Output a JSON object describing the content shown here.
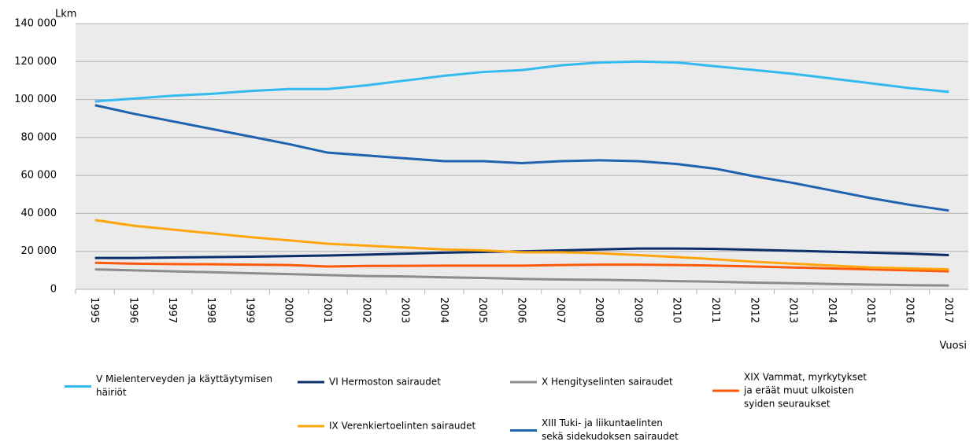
{
  "chart_data": {
    "type": "line",
    "y_label": "Lkm",
    "x_label": "Vuosi",
    "categories": [
      "1995",
      "1996",
      "1997",
      "1998",
      "1999",
      "2000",
      "2001",
      "2002",
      "2003",
      "2004",
      "2005",
      "2006",
      "2007",
      "2008",
      "2009",
      "2010",
      "2011",
      "2012",
      "2013",
      "2014",
      "2015",
      "2016",
      "2017"
    ],
    "ylim": [
      0,
      140000
    ],
    "yticks": [
      {
        "value": 0,
        "label": "0"
      },
      {
        "value": 20000,
        "label": "20 000"
      },
      {
        "value": 40000,
        "label": "40 000"
      },
      {
        "value": 60000,
        "label": "60 000"
      },
      {
        "value": 80000,
        "label": "80 000"
      },
      {
        "value": 100000,
        "label": "100 000"
      },
      {
        "value": 120000,
        "label": "120 000"
      },
      {
        "value": 140000,
        "label": "140 000"
      }
    ],
    "grid": true,
    "series": [
      {
        "name": "V Mielenterveyden ja käyttäytymisen häiriöt",
        "color": "#33bbf0",
        "values": [
          99000,
          100500,
          102000,
          103000,
          104500,
          105500,
          105500,
          107500,
          110000,
          112500,
          114500,
          115500,
          118000,
          119500,
          120000,
          119500,
          117500,
          115500,
          113500,
          111000,
          108500,
          106000,
          104000
        ]
      },
      {
        "name": "VI Hermoston sairaudet",
        "color": "#0a2f6b",
        "values": [
          16500,
          16500,
          16800,
          17000,
          17200,
          17500,
          17800,
          18300,
          18800,
          19300,
          19700,
          20000,
          20500,
          21000,
          21500,
          21500,
          21300,
          20800,
          20300,
          19800,
          19300,
          18800,
          18000
        ]
      },
      {
        "name": "X Hengityselinten sairaudet",
        "color": "#8c8c8c",
        "values": [
          10500,
          10000,
          9500,
          9000,
          8500,
          8000,
          7500,
          7000,
          6800,
          6300,
          6000,
          5500,
          5200,
          5000,
          4700,
          4300,
          4000,
          3500,
          3200,
          2800,
          2500,
          2200,
          2000
        ]
      },
      {
        "name": "XIX Vammat, myrkytykset ja eräät muut ulkoisten syiden seuraukset",
        "color": "#ff5a0a",
        "values": [
          14000,
          13500,
          13300,
          13200,
          13000,
          12800,
          12000,
          12300,
          12400,
          12500,
          12500,
          12500,
          12800,
          13000,
          13000,
          12800,
          12500,
          12000,
          11500,
          11000,
          10500,
          10000,
          9500
        ]
      },
      {
        "name": "IX Verenkiertoelinten sairaudet",
        "color": "#ffa50a",
        "values": [
          36500,
          33500,
          31500,
          29500,
          27500,
          25800,
          24000,
          23000,
          22000,
          21000,
          20500,
          19500,
          19500,
          19000,
          18000,
          17000,
          15800,
          14500,
          13500,
          12500,
          11500,
          11000,
          10500
        ]
      },
      {
        "name": "XIII Tuki- ja liikuntaelinten sekä sidekudoksen sairaudet",
        "color": "#1f62b0",
        "values": [
          97000,
          92500,
          88500,
          84500,
          80500,
          76500,
          72000,
          70500,
          69000,
          67500,
          67500,
          66500,
          67500,
          68000,
          67500,
          66000,
          63500,
          59500,
          56000,
          52000,
          48000,
          44500,
          41500
        ]
      }
    ]
  }
}
